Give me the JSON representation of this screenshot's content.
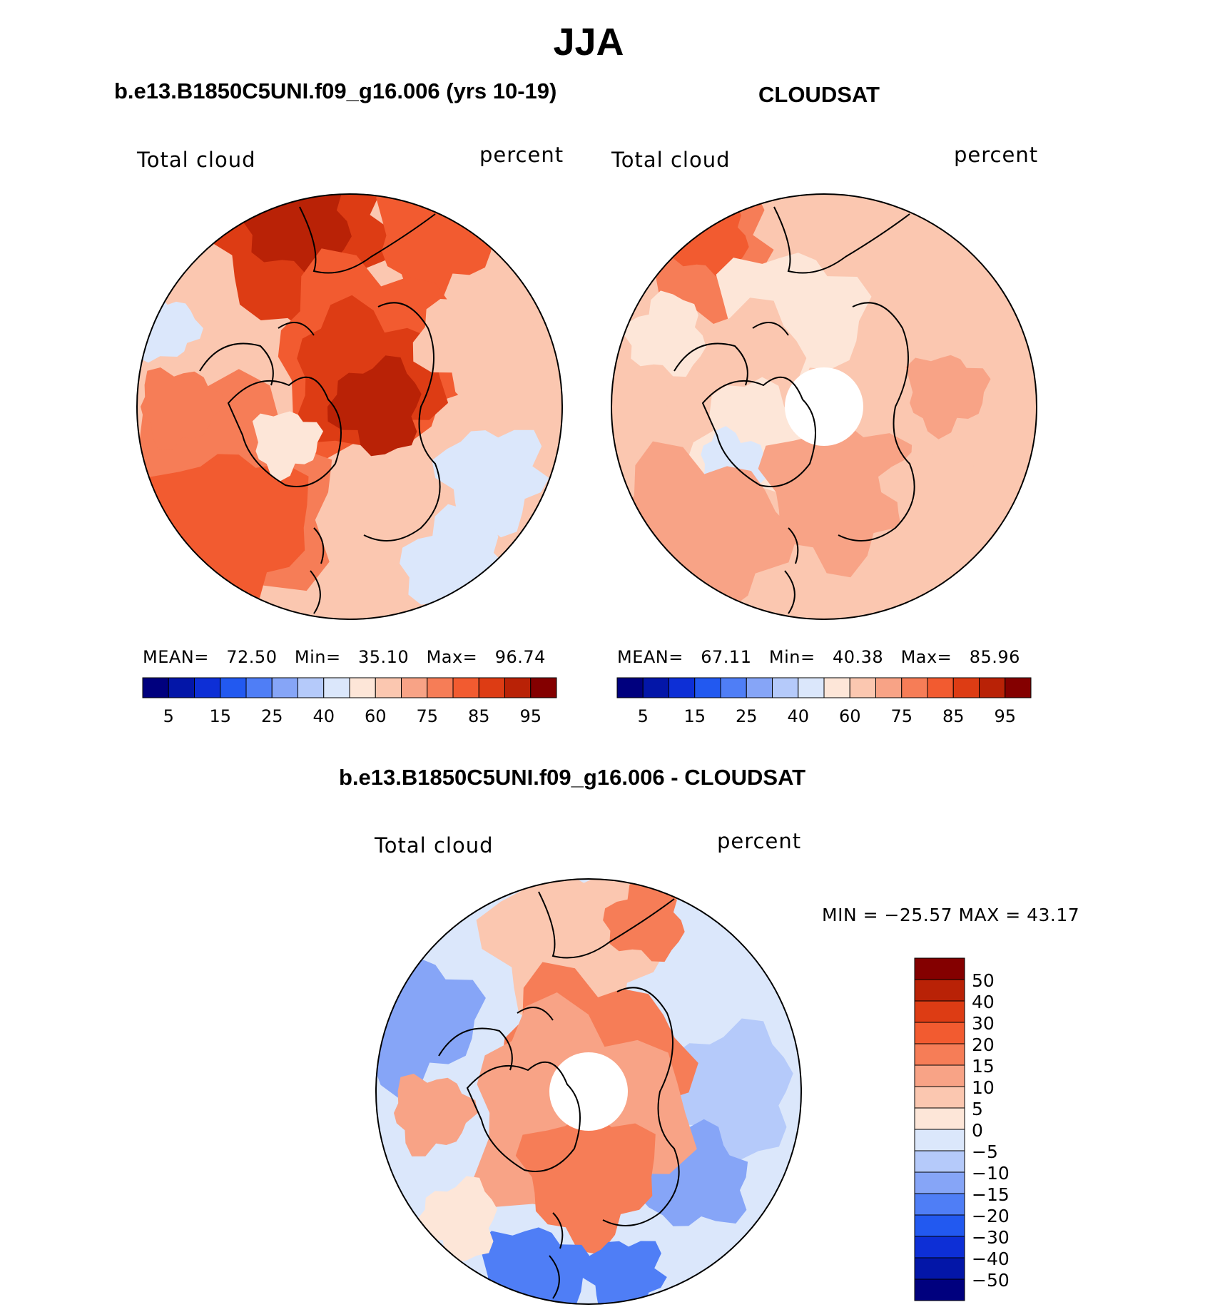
{
  "title": "JJA",
  "colors": {
    "scale": [
      "#00007e",
      "#0316a8",
      "#0d2fd6",
      "#2259f0",
      "#4f7ef6",
      "#86a5f7",
      "#b5cafa",
      "#dbe7fb",
      "#fde6d8",
      "#fbc7b0",
      "#f8a386",
      "#f67d57",
      "#f25b30",
      "#dd3c14",
      "#b92206",
      "#840000"
    ]
  },
  "panels": [
    {
      "title": "b.e13.B1850C5UNI.f09_g16.006 (yrs 10-19)",
      "variable": "Total cloud",
      "units": "percent",
      "stats": {
        "mean_label": "MEAN=",
        "mean": "72.50",
        "min_label": "Min=",
        "min": "35.10",
        "max_label": "Max=",
        "max": "96.74"
      },
      "colorbar_labels": [
        "5",
        "15",
        "25",
        "40",
        "60",
        "75",
        "85",
        "95"
      ]
    },
    {
      "title": "CLOUDSAT",
      "variable": "Total cloud",
      "units": "percent",
      "stats": {
        "mean_label": "MEAN=",
        "mean": "67.11",
        "min_label": "Min=",
        "min": "40.38",
        "max_label": "Max=",
        "max": "85.96"
      },
      "colorbar_labels": [
        "5",
        "15",
        "25",
        "40",
        "60",
        "75",
        "85",
        "95"
      ]
    }
  ],
  "difference": {
    "title": "b.e13.B1850C5UNI.f09_g16.006 - CLOUDSAT",
    "variable": "Total cloud",
    "units": "percent",
    "minmax": "MIN = −25.57 MAX =   43.17",
    "colorbar_labels": [
      "50",
      "40",
      "30",
      "20",
      "15",
      "10",
      "5",
      "0",
      "−5",
      "−10",
      "−15",
      "−20",
      "−30",
      "−40",
      "−50"
    ]
  }
}
